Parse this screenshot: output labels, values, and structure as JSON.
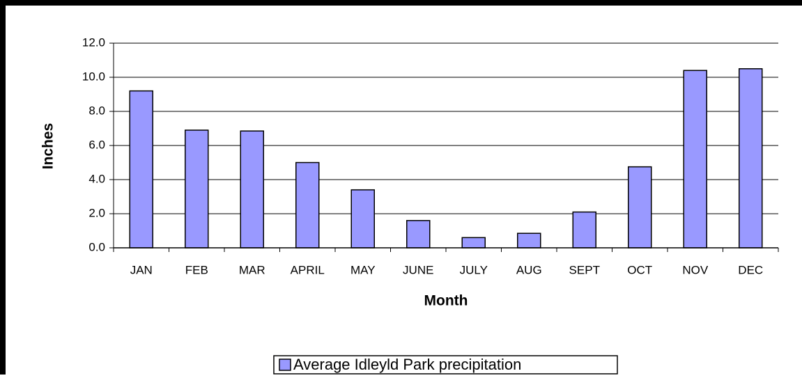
{
  "chart_data": {
    "type": "bar",
    "categories": [
      "JAN",
      "FEB",
      "MAR",
      "APRIL",
      "MAY",
      "JUNE",
      "JULY",
      "AUG",
      "SEPT",
      "OCT",
      "NOV",
      "DEC"
    ],
    "series": [
      {
        "name": "Average Idleyld Park precipitation",
        "color": "#9999ff",
        "values": [
          9.2,
          6.9,
          6.85,
          5.0,
          3.4,
          1.6,
          0.6,
          0.85,
          2.1,
          4.75,
          10.4,
          10.5
        ]
      }
    ],
    "xlabel": "Month",
    "ylabel": "Inches",
    "ylim": [
      0,
      12
    ],
    "yticks": [
      {
        "value": 0,
        "label": "0.0"
      },
      {
        "value": 2,
        "label": "2.0"
      },
      {
        "value": 4,
        "label": "4.0"
      },
      {
        "value": 6,
        "label": "6.0"
      },
      {
        "value": 8,
        "label": "8.0"
      },
      {
        "value": 10,
        "label": "10.0"
      },
      {
        "value": 12,
        "label": "12.0"
      }
    ],
    "grid": true,
    "legend": "bottom"
  }
}
